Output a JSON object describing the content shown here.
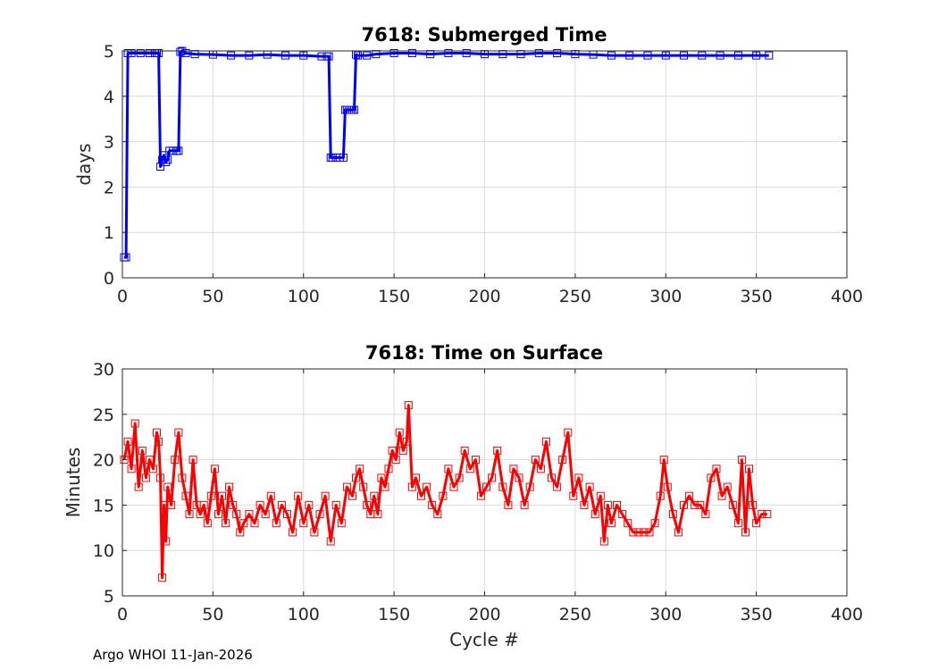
{
  "figure": {
    "footer": "Argo WHOI 11-Jan-2026"
  },
  "chart_data": [
    {
      "type": "line",
      "title": "7618: Submerged Time",
      "xlabel": "",
      "ylabel": "days",
      "xlim": [
        0,
        400
      ],
      "ylim": [
        0,
        5
      ],
      "xticks": [
        "0",
        "50",
        "100",
        "150",
        "200",
        "250",
        "300",
        "350",
        "400"
      ],
      "yticks": [
        "0",
        "1",
        "2",
        "3",
        "4",
        "5"
      ],
      "grid": true,
      "marker": "square",
      "color": "#0000ff",
      "series": [
        {
          "name": "Submerged Time",
          "x": [
            1,
            2,
            3,
            5,
            10,
            15,
            18,
            19,
            20,
            21,
            22,
            23,
            24,
            25,
            26,
            28,
            30,
            31,
            32,
            33,
            35,
            40,
            50,
            60,
            70,
            80,
            90,
            100,
            110,
            113,
            114,
            115,
            116,
            118,
            120,
            122,
            123,
            124,
            125,
            126,
            127,
            128,
            129,
            130,
            135,
            140,
            150,
            160,
            170,
            180,
            190,
            200,
            210,
            220,
            230,
            240,
            250,
            260,
            270,
            280,
            290,
            300,
            310,
            320,
            330,
            340,
            350,
            357
          ],
          "y": [
            0.45,
            0.45,
            4.95,
            4.95,
            4.95,
            4.95,
            4.95,
            4.95,
            4.95,
            2.45,
            2.6,
            2.7,
            2.55,
            2.6,
            2.8,
            2.8,
            2.8,
            2.8,
            4.98,
            5.0,
            4.95,
            4.93,
            4.92,
            4.9,
            4.9,
            4.92,
            4.9,
            4.9,
            4.88,
            4.88,
            4.88,
            2.65,
            2.65,
            2.65,
            2.65,
            2.65,
            3.7,
            3.7,
            3.7,
            3.7,
            3.7,
            3.7,
            4.92,
            4.9,
            4.9,
            4.93,
            4.95,
            4.95,
            4.93,
            4.95,
            4.95,
            4.93,
            4.93,
            4.93,
            4.95,
            4.95,
            4.93,
            4.92,
            4.9,
            4.9,
            4.9,
            4.9,
            4.9,
            4.9,
            4.9,
            4.9,
            4.9,
            4.9
          ]
        }
      ]
    },
    {
      "type": "line",
      "title": "7618: Time on Surface",
      "xlabel": "Cycle #",
      "ylabel": "Minutes",
      "xlim": [
        0,
        400
      ],
      "ylim": [
        5,
        30
      ],
      "xticks": [
        "0",
        "50",
        "100",
        "150",
        "200",
        "250",
        "300",
        "350",
        "400"
      ],
      "yticks": [
        "5",
        "10",
        "15",
        "20",
        "25",
        "30"
      ],
      "grid": true,
      "marker": "square",
      "color": "#ff0000",
      "series": [
        {
          "name": "Time on Surface",
          "x": [
            1,
            3,
            5,
            7,
            9,
            11,
            13,
            15,
            17,
            19,
            20,
            21,
            22,
            23,
            24,
            25,
            27,
            29,
            31,
            33,
            35,
            37,
            39,
            41,
            43,
            45,
            47,
            49,
            51,
            53,
            55,
            57,
            59,
            61,
            63,
            65,
            67,
            70,
            73,
            76,
            79,
            82,
            85,
            88,
            91,
            94,
            97,
            100,
            103,
            106,
            109,
            112,
            115,
            118,
            121,
            124,
            127,
            129,
            131,
            133,
            135,
            137,
            139,
            141,
            143,
            145,
            147,
            149,
            151,
            153,
            155,
            157,
            158,
            160,
            162,
            165,
            168,
            171,
            174,
            177,
            180,
            183,
            186,
            189,
            192,
            195,
            198,
            201,
            204,
            207,
            210,
            213,
            216,
            219,
            222,
            225,
            228,
            231,
            234,
            237,
            240,
            243,
            246,
            249,
            252,
            255,
            258,
            261,
            264,
            266,
            268,
            270,
            273,
            276,
            279,
            282,
            285,
            288,
            291,
            294,
            297,
            299,
            301,
            304,
            307,
            310,
            313,
            316,
            319,
            322,
            325,
            328,
            331,
            334,
            337,
            340,
            342,
            344,
            346,
            348,
            350,
            353,
            356
          ],
          "y": [
            20,
            22,
            19,
            24,
            17,
            21,
            18,
            20,
            19,
            23,
            22,
            18,
            7,
            15,
            11,
            17,
            15,
            20,
            23,
            18,
            16,
            14,
            20,
            15,
            14,
            15,
            13,
            16,
            19,
            14,
            16,
            13,
            17,
            15,
            14,
            12,
            13,
            14,
            13,
            15,
            14,
            16,
            13,
            15,
            14,
            12,
            16,
            13,
            15,
            12,
            14,
            16,
            11,
            15,
            13,
            17,
            16,
            18,
            19,
            17,
            15,
            14,
            16,
            14,
            18,
            17,
            19,
            21,
            20,
            23,
            21,
            22,
            26,
            17,
            18,
            16,
            17,
            15,
            14,
            16,
            19,
            17,
            18,
            21,
            19,
            20,
            16,
            17,
            18,
            21,
            17,
            15,
            19,
            18,
            15,
            17,
            20,
            19,
            22,
            18,
            17,
            20,
            23,
            16,
            18,
            15,
            17,
            14,
            16,
            11,
            15,
            13,
            15,
            14,
            13,
            12,
            12,
            12,
            12,
            13,
            16,
            20,
            17,
            14,
            12,
            15,
            16,
            15,
            15,
            14,
            18,
            19,
            16,
            17,
            15,
            13,
            20,
            12,
            19,
            15,
            13,
            14,
            14
          ]
        }
      ]
    }
  ]
}
